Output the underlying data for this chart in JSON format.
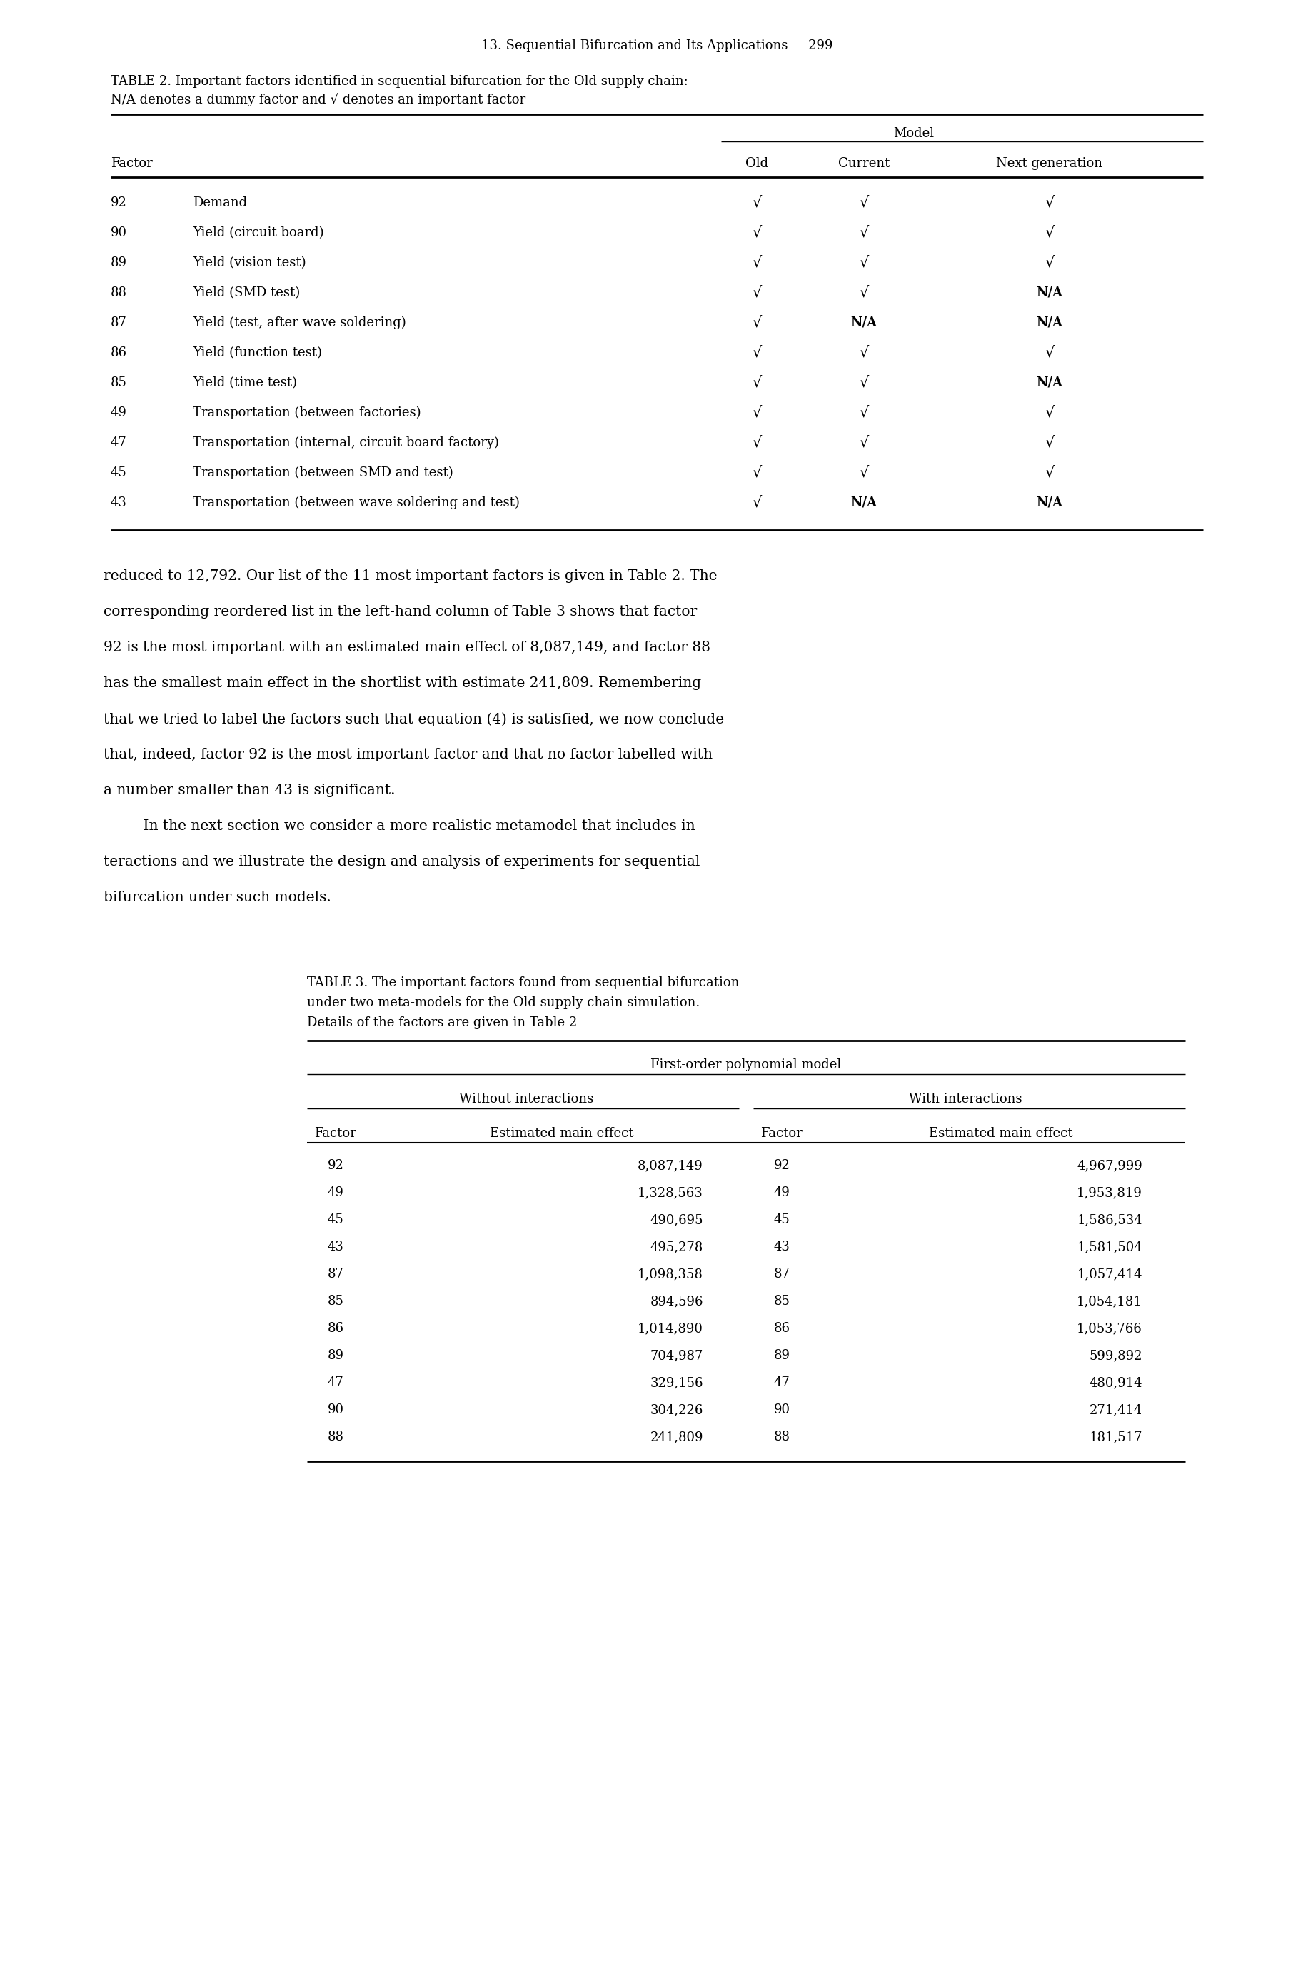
{
  "page_header": "13. Sequential Bifurcation and Its Applications     299",
  "table2_caption_line1": "TABLE 2. Important factors identified in sequential bifurcation for the Old supply chain:",
  "table2_caption_line2": "N/A denotes a dummy factor and √ denotes an important factor",
  "table2_model_header": "Model",
  "table2_rows": [
    [
      "92",
      "Demand",
      "√",
      "√",
      "√"
    ],
    [
      "90",
      "Yield (circuit board)",
      "√",
      "√",
      "√"
    ],
    [
      "89",
      "Yield (vision test)",
      "√",
      "√",
      "√"
    ],
    [
      "88",
      "Yield (SMD test)",
      "√",
      "√",
      "N/A"
    ],
    [
      "87",
      "Yield (test, after wave soldering)",
      "√",
      "N/A",
      "N/A"
    ],
    [
      "86",
      "Yield (function test)",
      "√",
      "√",
      "√"
    ],
    [
      "85",
      "Yield (time test)",
      "√",
      "√",
      "N/A"
    ],
    [
      "49",
      "Transportation (between factories)",
      "√",
      "√",
      "√"
    ],
    [
      "47",
      "Transportation (internal, circuit board factory)",
      "√",
      "√",
      "√"
    ],
    [
      "45",
      "Transportation (between SMD and test)",
      "√",
      "√",
      "√"
    ],
    [
      "43",
      "Transportation (between wave soldering and test)",
      "√",
      "N/A",
      "N/A"
    ]
  ],
  "body_text": [
    "reduced to 12,792. Our list of the 11 most important factors is given in Table 2. The",
    "corresponding reordered list in the left-hand column of Table 3 shows that factor",
    "92 is the most important with an estimated main effect of 8,087,149, and factor 88",
    "has the smallest main effect in the shortlist with estimate 241,809. Remembering",
    "that we tried to label the factors such that equation (4) is satisfied, we now conclude",
    "that, indeed, factor 92 is the most important factor and that no factor labelled with",
    "a number smaller than 43 is significant.",
    "    In the next section we consider a more realistic metamodel that includes in-",
    "teractions and we illustrate the design and analysis of experiments for sequential",
    "bifurcation under such models."
  ],
  "table3_caption_line1": "TABLE 3. The important factors found from sequential bifurcation",
  "table3_caption_line2": "under two meta-models for the Old supply chain simulation.",
  "table3_caption_line3": "Details of the factors are given in Table 2",
  "table3_main_header": "First-order polynomial model",
  "table3_sub_header_left": "Without interactions",
  "table3_sub_header_right": "With interactions",
  "table3_col_headers": [
    "Factor",
    "Estimated main effect",
    "Factor",
    "Estimated main effect"
  ],
  "table3_rows": [
    [
      "92",
      "8,087,149",
      "92",
      "4,967,999"
    ],
    [
      "49",
      "1,328,563",
      "49",
      "1,953,819"
    ],
    [
      "45",
      "490,695",
      "45",
      "1,586,534"
    ],
    [
      "43",
      "495,278",
      "43",
      "1,581,504"
    ],
    [
      "87",
      "1,098,358",
      "87",
      "1,057,414"
    ],
    [
      "85",
      "894,596",
      "85",
      "1,054,181"
    ],
    [
      "86",
      "1,014,890",
      "86",
      "1,053,766"
    ],
    [
      "89",
      "704,987",
      "89",
      "599,892"
    ],
    [
      "47",
      "329,156",
      "47",
      "480,914"
    ],
    [
      "90",
      "304,226",
      "90",
      "271,414"
    ],
    [
      "88",
      "241,809",
      "88",
      "181,517"
    ]
  ],
  "background_color": "#ffffff",
  "text_color": "#000000"
}
